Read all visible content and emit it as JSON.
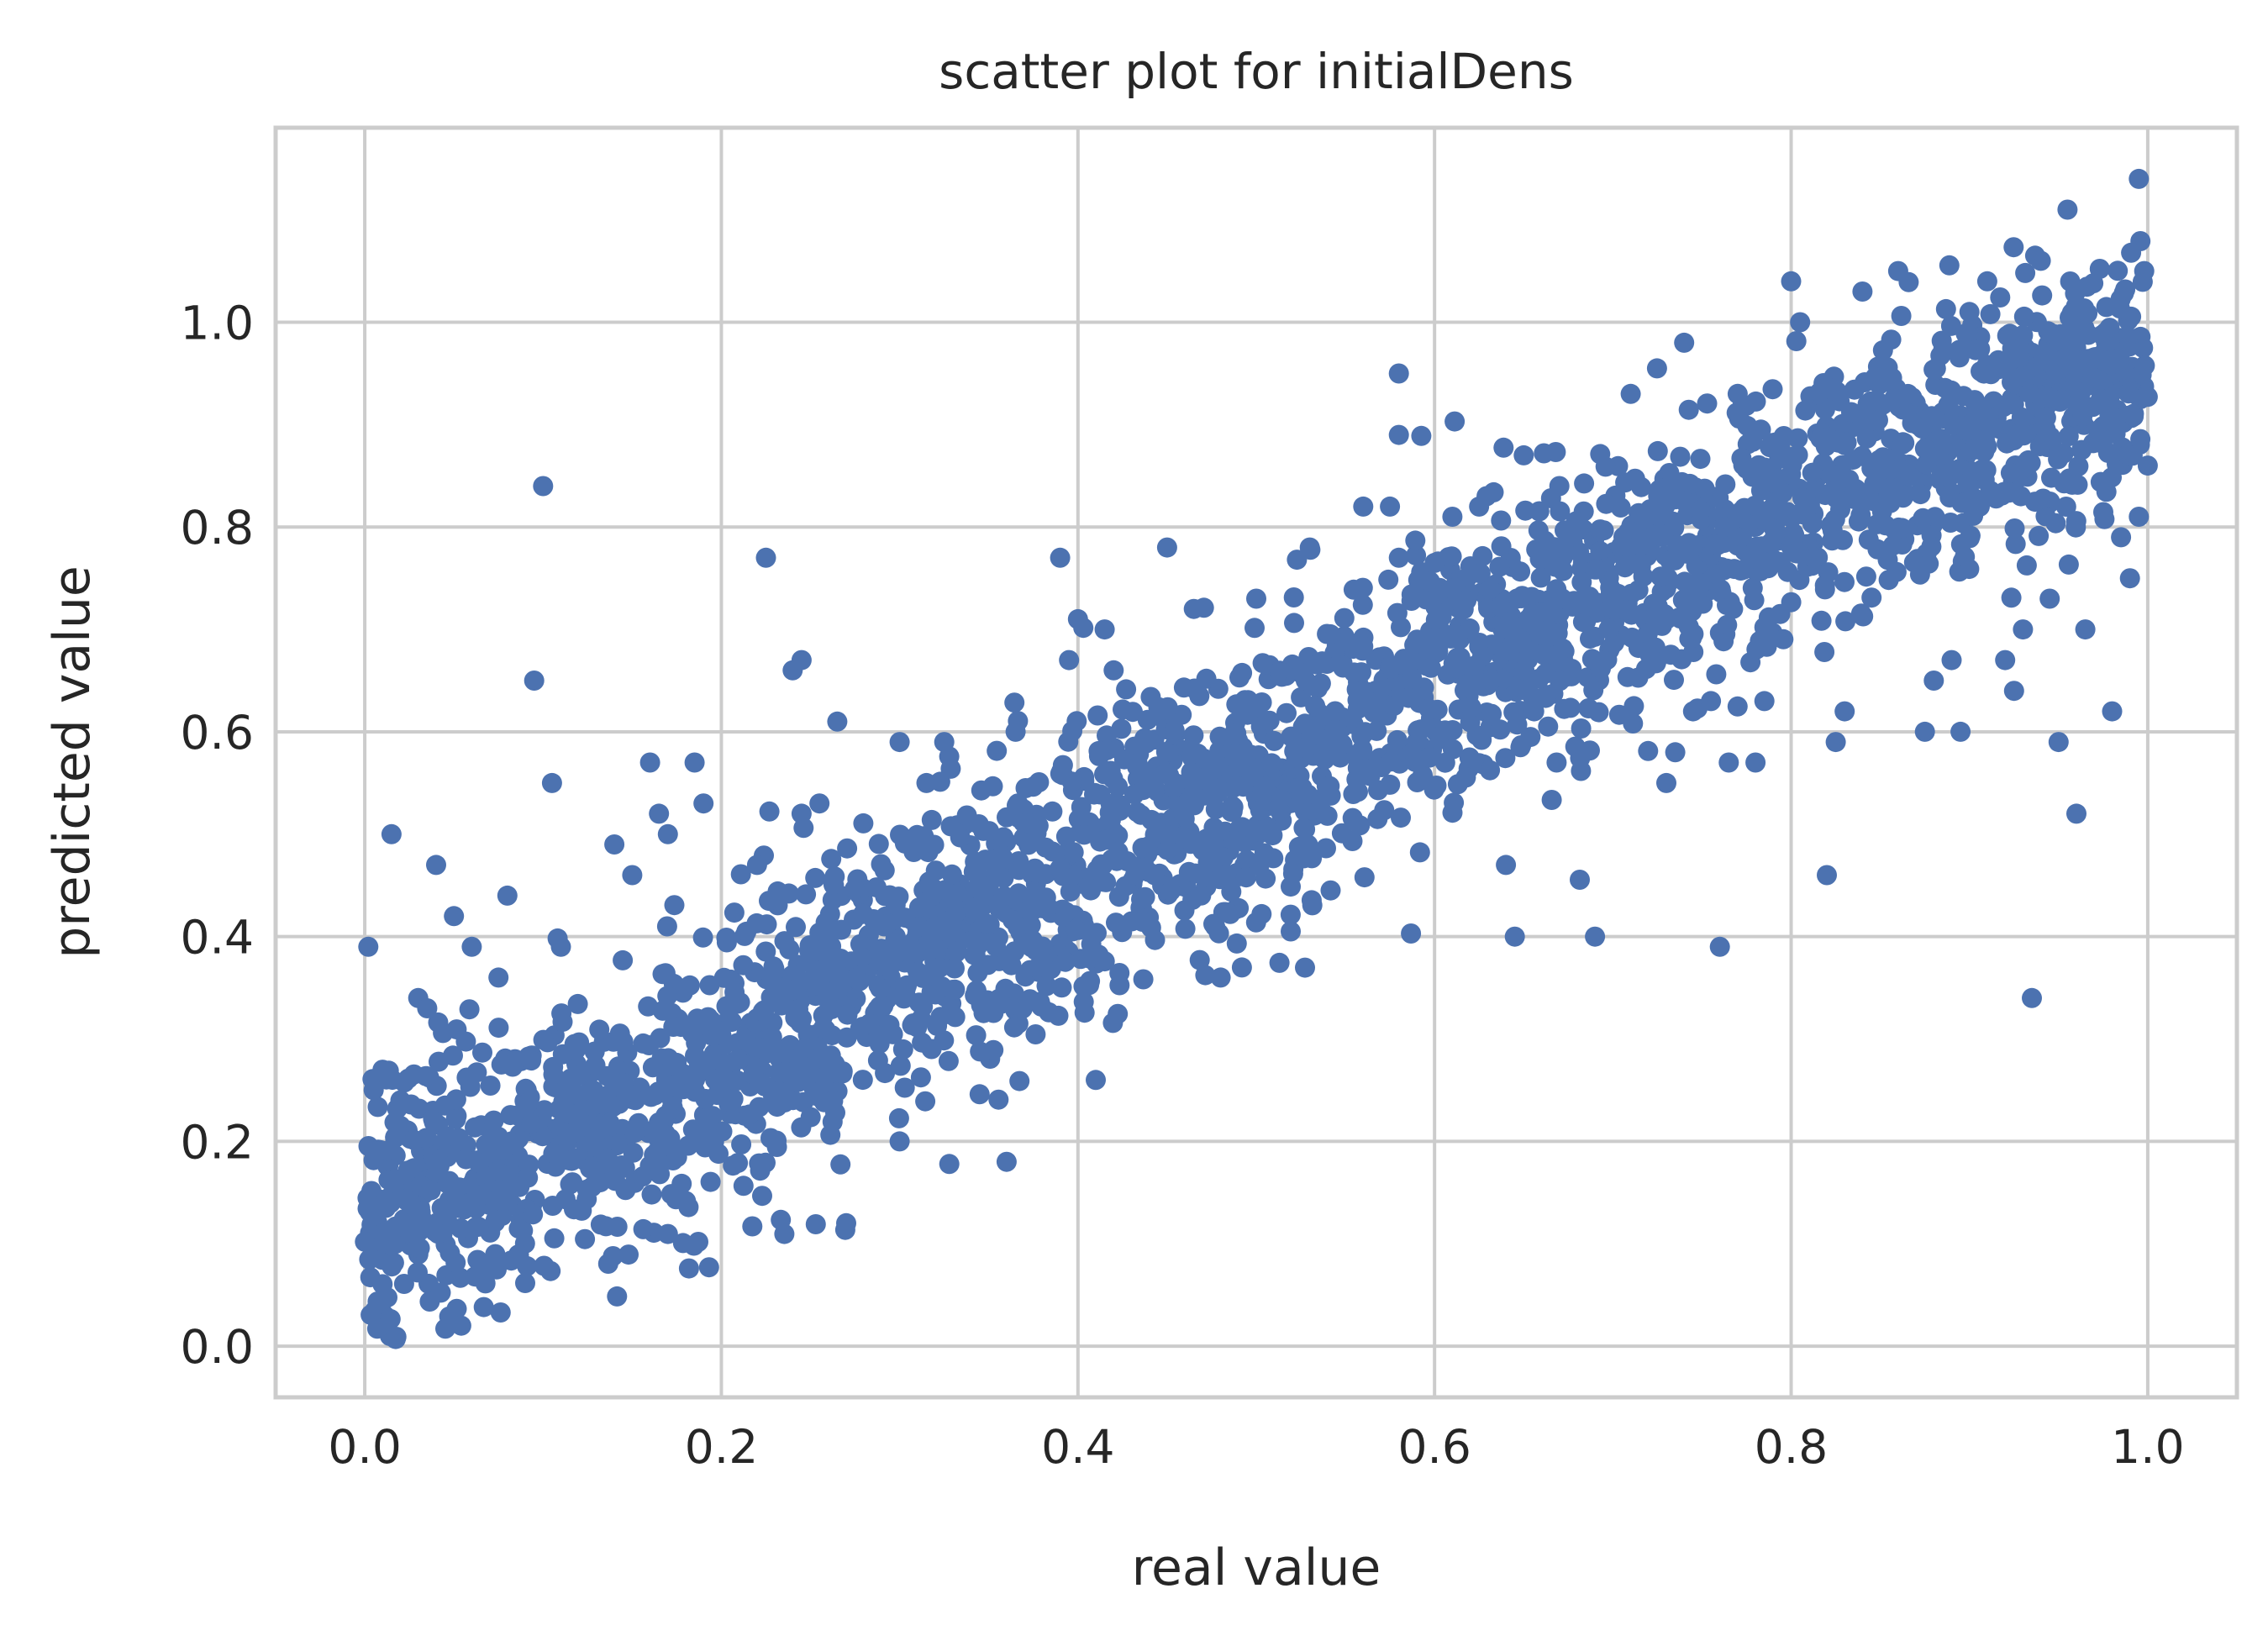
{
  "chart_data": {
    "type": "scatter",
    "title": "scatter plot for initialDens",
    "xlabel": "real value",
    "ylabel": "predicted value",
    "xlim": [
      -0.05,
      1.05
    ],
    "ylim": [
      -0.05,
      1.19
    ],
    "x_ticks": [
      0.0,
      0.2,
      0.4,
      0.6,
      0.8,
      1.0
    ],
    "x_tick_labels": [
      "0.0",
      "0.2",
      "0.4",
      "0.6",
      "0.8",
      "1.0"
    ],
    "y_ticks": [
      0.0,
      0.2,
      0.4,
      0.6,
      0.8,
      1.0
    ],
    "y_tick_labels": [
      "0.0",
      "0.2",
      "0.4",
      "0.6",
      "0.8",
      "1.0"
    ],
    "grid": true,
    "marker_color": "#4c72b0",
    "grid_color": "#cccccc",
    "spine_color": "#cccccc",
    "series": [
      {
        "points": [
          [
            0.002,
            0.39
          ],
          [
            0.005,
            0.25
          ],
          [
            0.01,
            0.27
          ],
          [
            0.015,
            0.5
          ],
          [
            0.02,
            0.24
          ],
          [
            0.03,
            0.34
          ],
          [
            0.035,
            0.33
          ],
          [
            0.04,
            0.47
          ],
          [
            0.05,
            0.42
          ],
          [
            0.06,
            0.39
          ],
          [
            0.075,
            0.36
          ],
          [
            0.08,
            0.44
          ],
          [
            0.095,
            0.65
          ],
          [
            0.1,
            0.84
          ],
          [
            0.105,
            0.55
          ],
          [
            0.11,
            0.39
          ],
          [
            0.14,
            0.49
          ],
          [
            0.15,
            0.46
          ],
          [
            0.16,
            0.57
          ],
          [
            0.165,
            0.52
          ],
          [
            0.17,
            0.5
          ],
          [
            0.185,
            0.57
          ],
          [
            0.19,
            0.53
          ],
          [
            0.22,
            0.47
          ],
          [
            0.225,
            0.77
          ],
          [
            0.24,
            0.66
          ],
          [
            0.245,
            0.67
          ],
          [
            0.245,
            0.52
          ],
          [
            0.255,
            0.53
          ],
          [
            0.265,
            0.61
          ],
          [
            0.27,
            0.12
          ],
          [
            0.3,
            0.2
          ],
          [
            0.3,
            0.59
          ],
          [
            0.315,
            0.55
          ],
          [
            0.325,
            0.59
          ],
          [
            0.36,
            0.18
          ],
          [
            0.365,
            0.6
          ],
          [
            0.39,
            0.77
          ],
          [
            0.395,
            0.67
          ],
          [
            0.4,
            0.71
          ],
          [
            0.41,
            0.26
          ],
          [
            0.415,
            0.7
          ],
          [
            0.42,
            0.66
          ],
          [
            0.45,
            0.78
          ],
          [
            0.465,
            0.72
          ],
          [
            0.48,
            0.36
          ],
          [
            0.5,
            0.73
          ],
          [
            0.53,
            0.78
          ],
          [
            0.56,
            0.82
          ],
          [
            0.575,
            0.82
          ],
          [
            0.58,
            0.95
          ],
          [
            0.58,
            0.89
          ],
          [
            0.58,
            0.77
          ],
          [
            0.61,
            0.81
          ],
          [
            0.625,
            0.82
          ],
          [
            0.64,
            0.47
          ],
          [
            0.645,
            0.4
          ],
          [
            0.65,
            0.87
          ],
          [
            0.67,
            0.84
          ],
          [
            0.69,
            0.4
          ],
          [
            0.71,
            0.93
          ],
          [
            0.73,
            0.55
          ],
          [
            0.735,
            0.58
          ],
          [
            0.74,
            0.98
          ],
          [
            0.745,
            0.62
          ],
          [
            0.755,
            0.63
          ],
          [
            0.76,
            0.39
          ],
          [
            0.765,
            0.57
          ],
          [
            0.77,
            0.93
          ],
          [
            0.78,
            0.57
          ],
          [
            0.785,
            0.63
          ],
          [
            0.8,
            1.04
          ],
          [
            0.805,
            1.0
          ],
          [
            0.82,
            0.46
          ],
          [
            0.825,
            0.59
          ],
          [
            0.83,
            0.62
          ],
          [
            0.84,
            1.03
          ],
          [
            0.86,
            1.05
          ],
          [
            0.875,
            0.6
          ],
          [
            0.88,
            0.65
          ],
          [
            0.89,
            0.67
          ],
          [
            0.895,
            0.6
          ],
          [
            0.9,
            1.01
          ],
          [
            0.91,
            1.04
          ],
          [
            0.92,
            0.67
          ],
          [
            0.925,
            0.64
          ],
          [
            0.93,
            0.7
          ],
          [
            0.935,
            0.34
          ],
          [
            0.94,
            1.06
          ],
          [
            0.945,
            0.73
          ],
          [
            0.95,
            0.59
          ],
          [
            0.955,
            1.11
          ],
          [
            0.96,
            0.52
          ],
          [
            0.965,
            0.7
          ],
          [
            0.98,
            0.62
          ],
          [
            0.985,
            0.79
          ],
          [
            0.99,
            0.75
          ],
          [
            0.995,
            1.14
          ],
          [
            0.998,
            1.05
          ],
          [
            1.0,
            0.86
          ],
          [
            0.995,
            0.81
          ]
        ]
      }
    ],
    "dense_band": {
      "description_points_per_band": 2850,
      "anchors": [
        [
          0.0,
          0.13,
          0.06
        ],
        [
          0.05,
          0.16,
          0.065
        ],
        [
          0.15,
          0.22,
          0.07
        ],
        [
          0.25,
          0.32,
          0.07
        ],
        [
          0.35,
          0.42,
          0.07
        ],
        [
          0.45,
          0.51,
          0.07
        ],
        [
          0.55,
          0.6,
          0.07
        ],
        [
          0.65,
          0.7,
          0.068
        ],
        [
          0.75,
          0.78,
          0.065
        ],
        [
          0.85,
          0.86,
          0.06
        ],
        [
          0.95,
          0.92,
          0.058
        ],
        [
          1.0,
          0.95,
          0.055
        ]
      ]
    }
  }
}
